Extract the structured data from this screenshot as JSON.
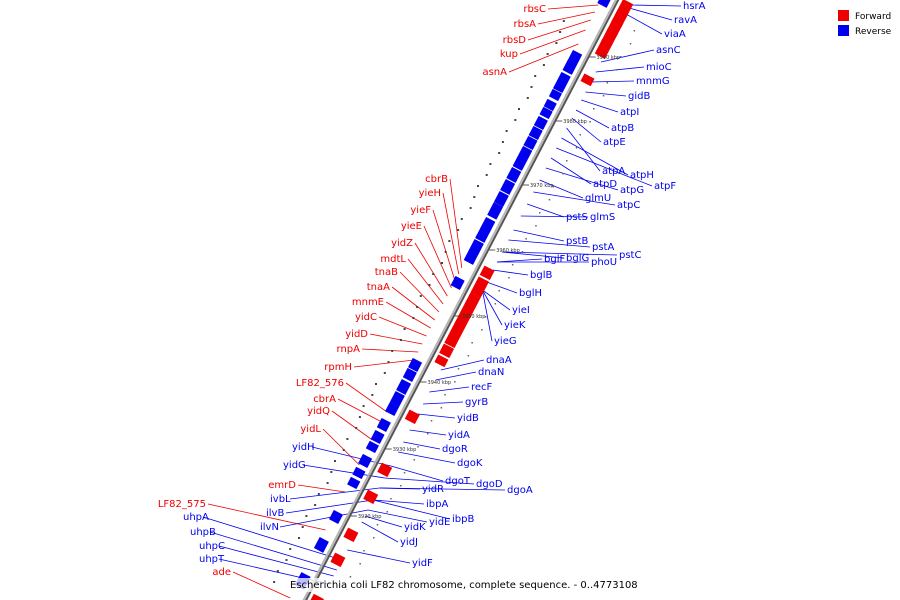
{
  "caption": "Escherichia coli LF82 chromosome, complete sequence. - 0..4773108",
  "legend": [
    {
      "label": "Forward",
      "color": "#ee0000"
    },
    {
      "label": "Reverse",
      "color": "#0000ee"
    }
  ],
  "colors": {
    "forward": "#ee0000",
    "reverse": "#0000ee",
    "axis": "#555555"
  },
  "tick_labels": [
    "3990 kbp",
    "3980 kbp",
    "3970 kbp",
    "3960 kbp",
    "3950 kbp",
    "3940 kbp",
    "3930 kbp",
    "3920 kbp",
    "3910 kbp"
  ],
  "forward_genes": [
    "rbsC",
    "rbsA",
    "rbsD",
    "kup",
    "asnA",
    "cbrB",
    "yieH",
    "yieF",
    "yieE",
    "yidZ",
    "mdtL",
    "tnaB",
    "tnaA",
    "mnmE",
    "yidC",
    "yidD",
    "rnpA",
    "rpmH",
    "LF82_576",
    "cbrA",
    "yidQ",
    "yidL",
    "emrD",
    "LF82_575",
    "ade"
  ],
  "reverse_genes": [
    "hsrA",
    "ravA",
    "viaA",
    "asnC",
    "mioC",
    "mnmG",
    "gidB",
    "atpI",
    "atpB",
    "atpE",
    "atpA",
    "atpH",
    "atpF",
    "atpD",
    "atpG",
    "glmU",
    "atpC",
    "pstS",
    "glmS",
    "pstB",
    "pstA",
    "pstC",
    "bglF",
    "bglG",
    "phoU",
    "bglB",
    "bglH",
    "yieI",
    "yieK",
    "yieG",
    "dnaA",
    "dnaN",
    "recF",
    "gyrB",
    "yidB",
    "yidA",
    "dgoR",
    "dgoK",
    "dgoT",
    "dgoD",
    "dgoA",
    "yidR",
    "ibpA",
    "ibpB",
    "yidE",
    "yidK",
    "yidJ",
    "yidF",
    "yidH",
    "yidG",
    "ivbL",
    "ilvB",
    "ilvN",
    "uhpA",
    "uhpB",
    "uhpC",
    "uhpT"
  ]
}
